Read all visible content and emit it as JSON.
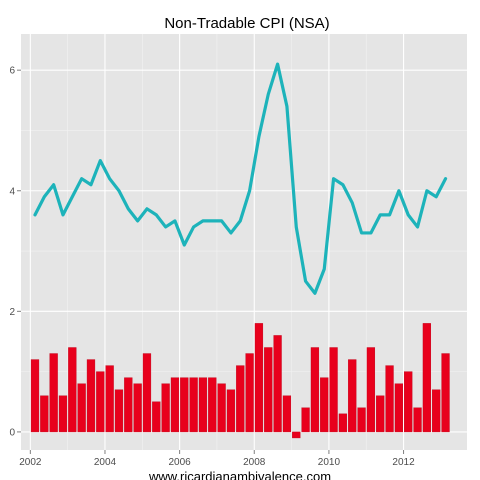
{
  "chart_data": {
    "type": "bar+line",
    "title": "Non-Tradable CPI (NSA)",
    "xlabel": "",
    "ylabel": "",
    "caption": "www.ricardianambivalence.com",
    "xlim": [
      2001.75,
      2013.7
    ],
    "ylim": [
      -0.3,
      6.6
    ],
    "x_ticks": [
      2002,
      2004,
      2006,
      2008,
      2010,
      2012
    ],
    "y_ticks": [
      0,
      2,
      4,
      6
    ],
    "grid": true,
    "panel_background": "#e5e5e5",
    "grid_color": "#ffffff",
    "bar_series": {
      "color": "#e8001c",
      "edge_color": "#c00018",
      "bar_width_years": 0.21,
      "x": [
        2002.125,
        2002.375,
        2002.625,
        2002.875,
        2003.125,
        2003.375,
        2003.625,
        2003.875,
        2004.125,
        2004.375,
        2004.625,
        2004.875,
        2005.125,
        2005.375,
        2005.625,
        2005.875,
        2006.125,
        2006.375,
        2006.625,
        2006.875,
        2007.125,
        2007.375,
        2007.625,
        2007.875,
        2008.125,
        2008.375,
        2008.625,
        2008.875,
        2009.125,
        2009.375,
        2009.625,
        2009.875,
        2010.125,
        2010.375,
        2010.625,
        2010.875,
        2011.125,
        2011.375,
        2011.625,
        2011.875,
        2012.125,
        2012.375,
        2012.625,
        2012.875,
        2013.125
      ],
      "values": [
        1.2,
        0.6,
        1.3,
        0.6,
        1.4,
        0.8,
        1.2,
        1.0,
        1.1,
        0.7,
        0.9,
        0.8,
        1.3,
        0.5,
        0.8,
        0.9,
        0.9,
        0.9,
        0.9,
        0.9,
        0.8,
        0.7,
        1.1,
        1.3,
        1.8,
        1.4,
        1.6,
        0.6,
        -0.1,
        0.4,
        1.4,
        0.9,
        1.4,
        0.3,
        1.2,
        0.4,
        1.4,
        0.6,
        1.1,
        0.8,
        1.0,
        0.4,
        1.8,
        0.7,
        1.3
      ]
    },
    "line_series": {
      "color": "#1db3ba",
      "x": [
        2002.125,
        2002.375,
        2002.625,
        2002.875,
        2003.125,
        2003.375,
        2003.625,
        2003.875,
        2004.125,
        2004.375,
        2004.625,
        2004.875,
        2005.125,
        2005.375,
        2005.625,
        2005.875,
        2006.125,
        2006.375,
        2006.625,
        2006.875,
        2007.125,
        2007.375,
        2007.625,
        2007.875,
        2008.125,
        2008.375,
        2008.625,
        2008.875,
        2009.125,
        2009.375,
        2009.625,
        2009.875,
        2010.125,
        2010.375,
        2010.625,
        2010.875,
        2011.125,
        2011.375,
        2011.625,
        2011.875,
        2012.125,
        2012.375,
        2012.625,
        2012.875,
        2013.125
      ],
      "values": [
        3.6,
        3.9,
        4.1,
        3.6,
        3.9,
        4.2,
        4.1,
        4.5,
        4.2,
        4.0,
        3.7,
        3.5,
        3.7,
        3.6,
        3.4,
        3.5,
        3.1,
        3.4,
        3.5,
        3.5,
        3.5,
        3.3,
        3.5,
        4.0,
        4.9,
        5.6,
        6.1,
        5.4,
        3.4,
        2.5,
        2.3,
        2.7,
        4.2,
        4.1,
        3.8,
        3.3,
        3.3,
        3.6,
        3.6,
        4.0,
        3.6,
        3.4,
        4.0,
        3.9,
        4.2
      ]
    }
  }
}
